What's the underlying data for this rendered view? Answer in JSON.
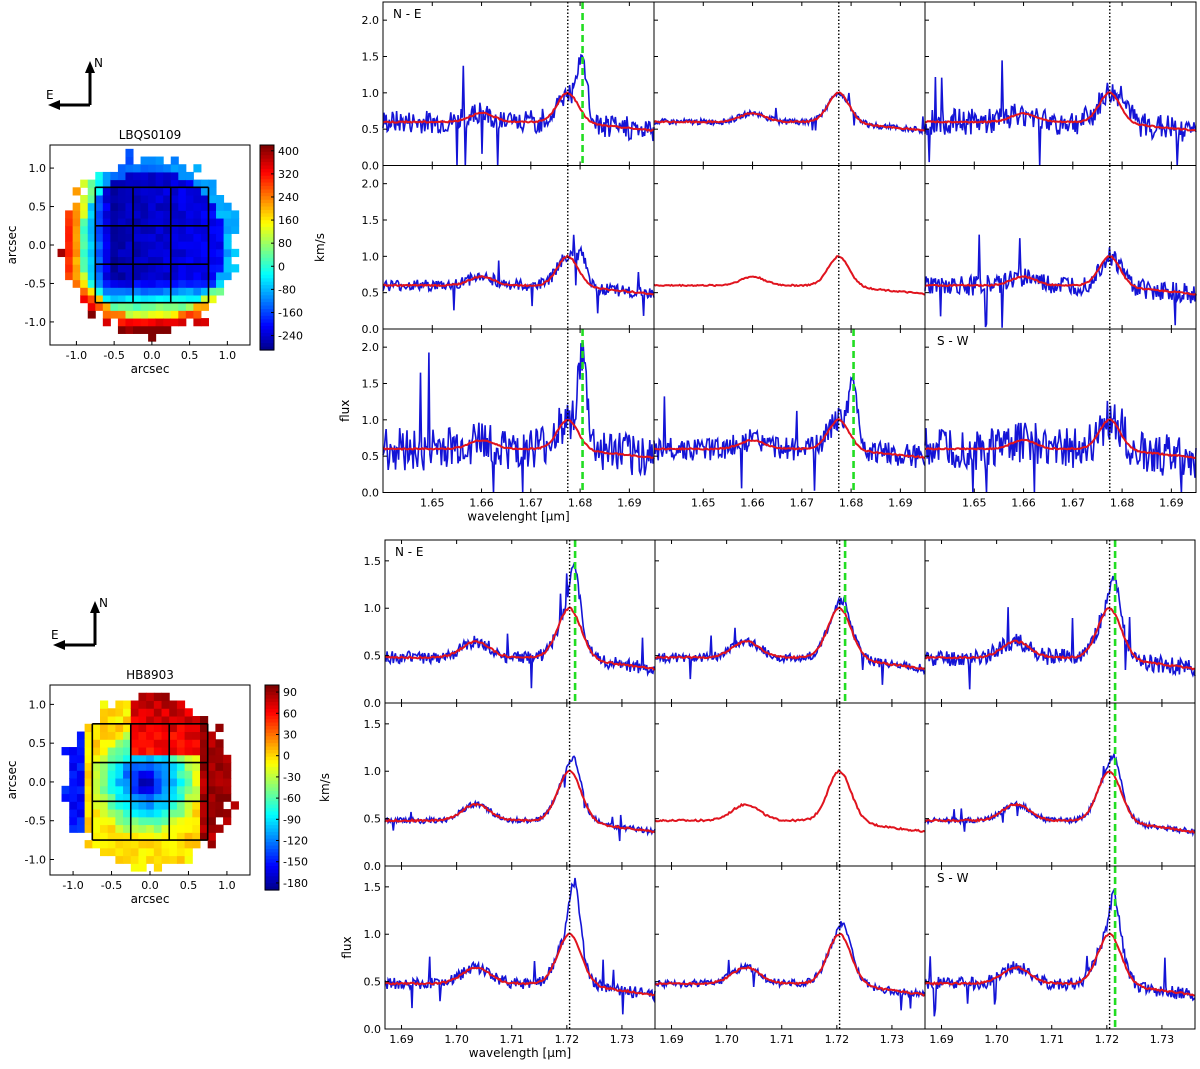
{
  "chart_data": [
    {
      "type": "heatmap",
      "id": "map1",
      "title": "LBQS0109",
      "xlabel": "arcsec",
      "ylabel": "arcsec",
      "colorbar_label": "km/s",
      "xlim": [
        -1.35,
        1.3
      ],
      "ylim": [
        -1.3,
        1.3
      ],
      "xticks": [
        "-1.0",
        "-0.5",
        "0.0",
        "0.5",
        "1.0"
      ],
      "xtick_values": [
        -1.0,
        -0.5,
        0.0,
        0.5,
        1.0
      ],
      "yticks": [
        "1.0",
        "0.5",
        "0.0",
        "-0.5",
        "-1.0"
      ],
      "ytick_values": [
        1.0,
        0.5,
        0.0,
        -0.5,
        -1.0
      ],
      "colorbar_ticks": [
        "400",
        "320",
        "240",
        "160",
        "80",
        "0",
        "-80",
        "-160",
        "-240"
      ],
      "colorbar_values": [
        400,
        320,
        240,
        160,
        80,
        0,
        -80,
        -160,
        -240
      ],
      "vmin": -290,
      "vmax": 420,
      "compass": {
        "north": "N",
        "east": "E"
      },
      "grid_box": {
        "x": [
          -0.75,
          -0.25,
          0.25,
          0.75
        ],
        "y": [
          -0.75,
          -0.25,
          0.25,
          0.75
        ]
      }
    },
    {
      "type": "heatmap",
      "id": "map2",
      "title": "HB8903",
      "xlabel": "arcsec",
      "ylabel": "arcsec",
      "colorbar_label": "km/s",
      "xlim": [
        -1.3,
        1.3
      ],
      "ylim": [
        -1.2,
        1.25
      ],
      "xticks": [
        "-1.0",
        "-0.5",
        "0.0",
        "0.5",
        "1.0"
      ],
      "xtick_values": [
        -1.0,
        -0.5,
        0.0,
        0.5,
        1.0
      ],
      "yticks": [
        "1.0",
        "0.5",
        "0.0",
        "-0.5",
        "-1.0"
      ],
      "ytick_values": [
        1.0,
        0.5,
        0.0,
        -0.5,
        -1.0
      ],
      "colorbar_ticks": [
        "90",
        "60",
        "30",
        "0",
        "-30",
        "-60",
        "-90",
        "-120",
        "-150",
        "-180"
      ],
      "colorbar_values": [
        90,
        60,
        30,
        0,
        -30,
        -60,
        -90,
        -120,
        -150,
        -180
      ],
      "vmin": -190,
      "vmax": 100,
      "compass": {
        "north": "N",
        "east": "E"
      },
      "grid_box": {
        "x": [
          -0.75,
          -0.25,
          0.25,
          0.75
        ],
        "y": [
          -0.75,
          -0.25,
          0.25,
          0.75
        ]
      }
    },
    {
      "type": "line",
      "id": "grid1",
      "description_series": [
        "observed spectrum (blue)",
        "model (red)"
      ],
      "xlabel": "wavelenght [μm]",
      "ylabel": "flux",
      "xlim": [
        1.64,
        1.695
      ],
      "ylim": [
        0.0,
        2.25
      ],
      "xticks": [
        "1.65",
        "1.66",
        "1.67",
        "1.68",
        "1.69"
      ],
      "xtick_values": [
        1.65,
        1.66,
        1.67,
        1.68,
        1.69
      ],
      "yticks": [
        "0.0",
        "0.5",
        "1.0",
        "1.5",
        "2.0"
      ],
      "ytick_values": [
        0.0,
        0.5,
        1.0,
        1.5,
        2.0
      ],
      "black_dotted_line": 1.6775,
      "green_dashed_line": 1.6805,
      "label_NE": "N - E",
      "label_SW": "S - W",
      "model": {
        "continuum": 0.6,
        "bump_center": 1.66,
        "bump_height": 0.12,
        "peak_center": 1.6775,
        "peak_height": 0.4
      },
      "panels": [
        {
          "row": 0,
          "col": 0,
          "noise": 0.16,
          "excess": 0.75,
          "green": true
        },
        {
          "row": 0,
          "col": 1,
          "noise": 0.04,
          "excess": 0.0,
          "green": false
        },
        {
          "row": 0,
          "col": 2,
          "noise": 0.18,
          "excess": 0.25,
          "green": false
        },
        {
          "row": 1,
          "col": 0,
          "noise": 0.08,
          "excess": 0.3,
          "green": false
        },
        {
          "row": 1,
          "col": 1,
          "noise": 0.0,
          "excess": 0.0,
          "green": false
        },
        {
          "row": 1,
          "col": 2,
          "noise": 0.14,
          "excess": 0.05,
          "green": false
        },
        {
          "row": 2,
          "col": 0,
          "noise": 0.3,
          "excess": 1.1,
          "green": true
        },
        {
          "row": 2,
          "col": 1,
          "noise": 0.16,
          "excess": 0.75,
          "green": true
        },
        {
          "row": 2,
          "col": 2,
          "noise": 0.3,
          "excess": 0.1,
          "green": false
        }
      ]
    },
    {
      "type": "line",
      "id": "grid2",
      "description_series": [
        "observed spectrum (blue)",
        "model (red)"
      ],
      "xlabel": "wavelength [μm]",
      "ylabel": "flux",
      "xlim": [
        1.687,
        1.736
      ],
      "ylim": [
        0.0,
        1.72
      ],
      "xticks": [
        "1.69",
        "1.70",
        "1.71",
        "1.72",
        "1.73"
      ],
      "xtick_values": [
        1.69,
        1.7,
        1.71,
        1.72,
        1.73
      ],
      "yticks": [
        "0.0",
        "0.5",
        "1.0",
        "1.5"
      ],
      "ytick_values": [
        0.0,
        0.5,
        1.0,
        1.5
      ],
      "black_dotted_line": 1.7205,
      "green_dashed_line": 1.7215,
      "label_NE": "N - E",
      "label_SW": "S - W",
      "model": {
        "continuum": 0.48,
        "bump_center": 1.7035,
        "bump_height": 0.17,
        "peak_center": 1.7205,
        "peak_height": 0.52
      },
      "panels": [
        {
          "row": 0,
          "col": 0,
          "noise": 0.07,
          "excess": 0.45,
          "green": true
        },
        {
          "row": 0,
          "col": 1,
          "noise": 0.05,
          "excess": 0.1,
          "green": true
        },
        {
          "row": 0,
          "col": 2,
          "noise": 0.09,
          "excess": 0.4,
          "green": true
        },
        {
          "row": 1,
          "col": 0,
          "noise": 0.03,
          "excess": 0.18,
          "green": false
        },
        {
          "row": 1,
          "col": 1,
          "noise": 0.0,
          "excess": 0.0,
          "green": false
        },
        {
          "row": 1,
          "col": 2,
          "noise": 0.03,
          "excess": 0.2,
          "green": true
        },
        {
          "row": 2,
          "col": 0,
          "noise": 0.06,
          "excess": 0.6,
          "green": false
        },
        {
          "row": 2,
          "col": 1,
          "noise": 0.04,
          "excess": 0.15,
          "green": false
        },
        {
          "row": 2,
          "col": 2,
          "noise": 0.07,
          "excess": 0.45,
          "green": true
        }
      ]
    }
  ]
}
